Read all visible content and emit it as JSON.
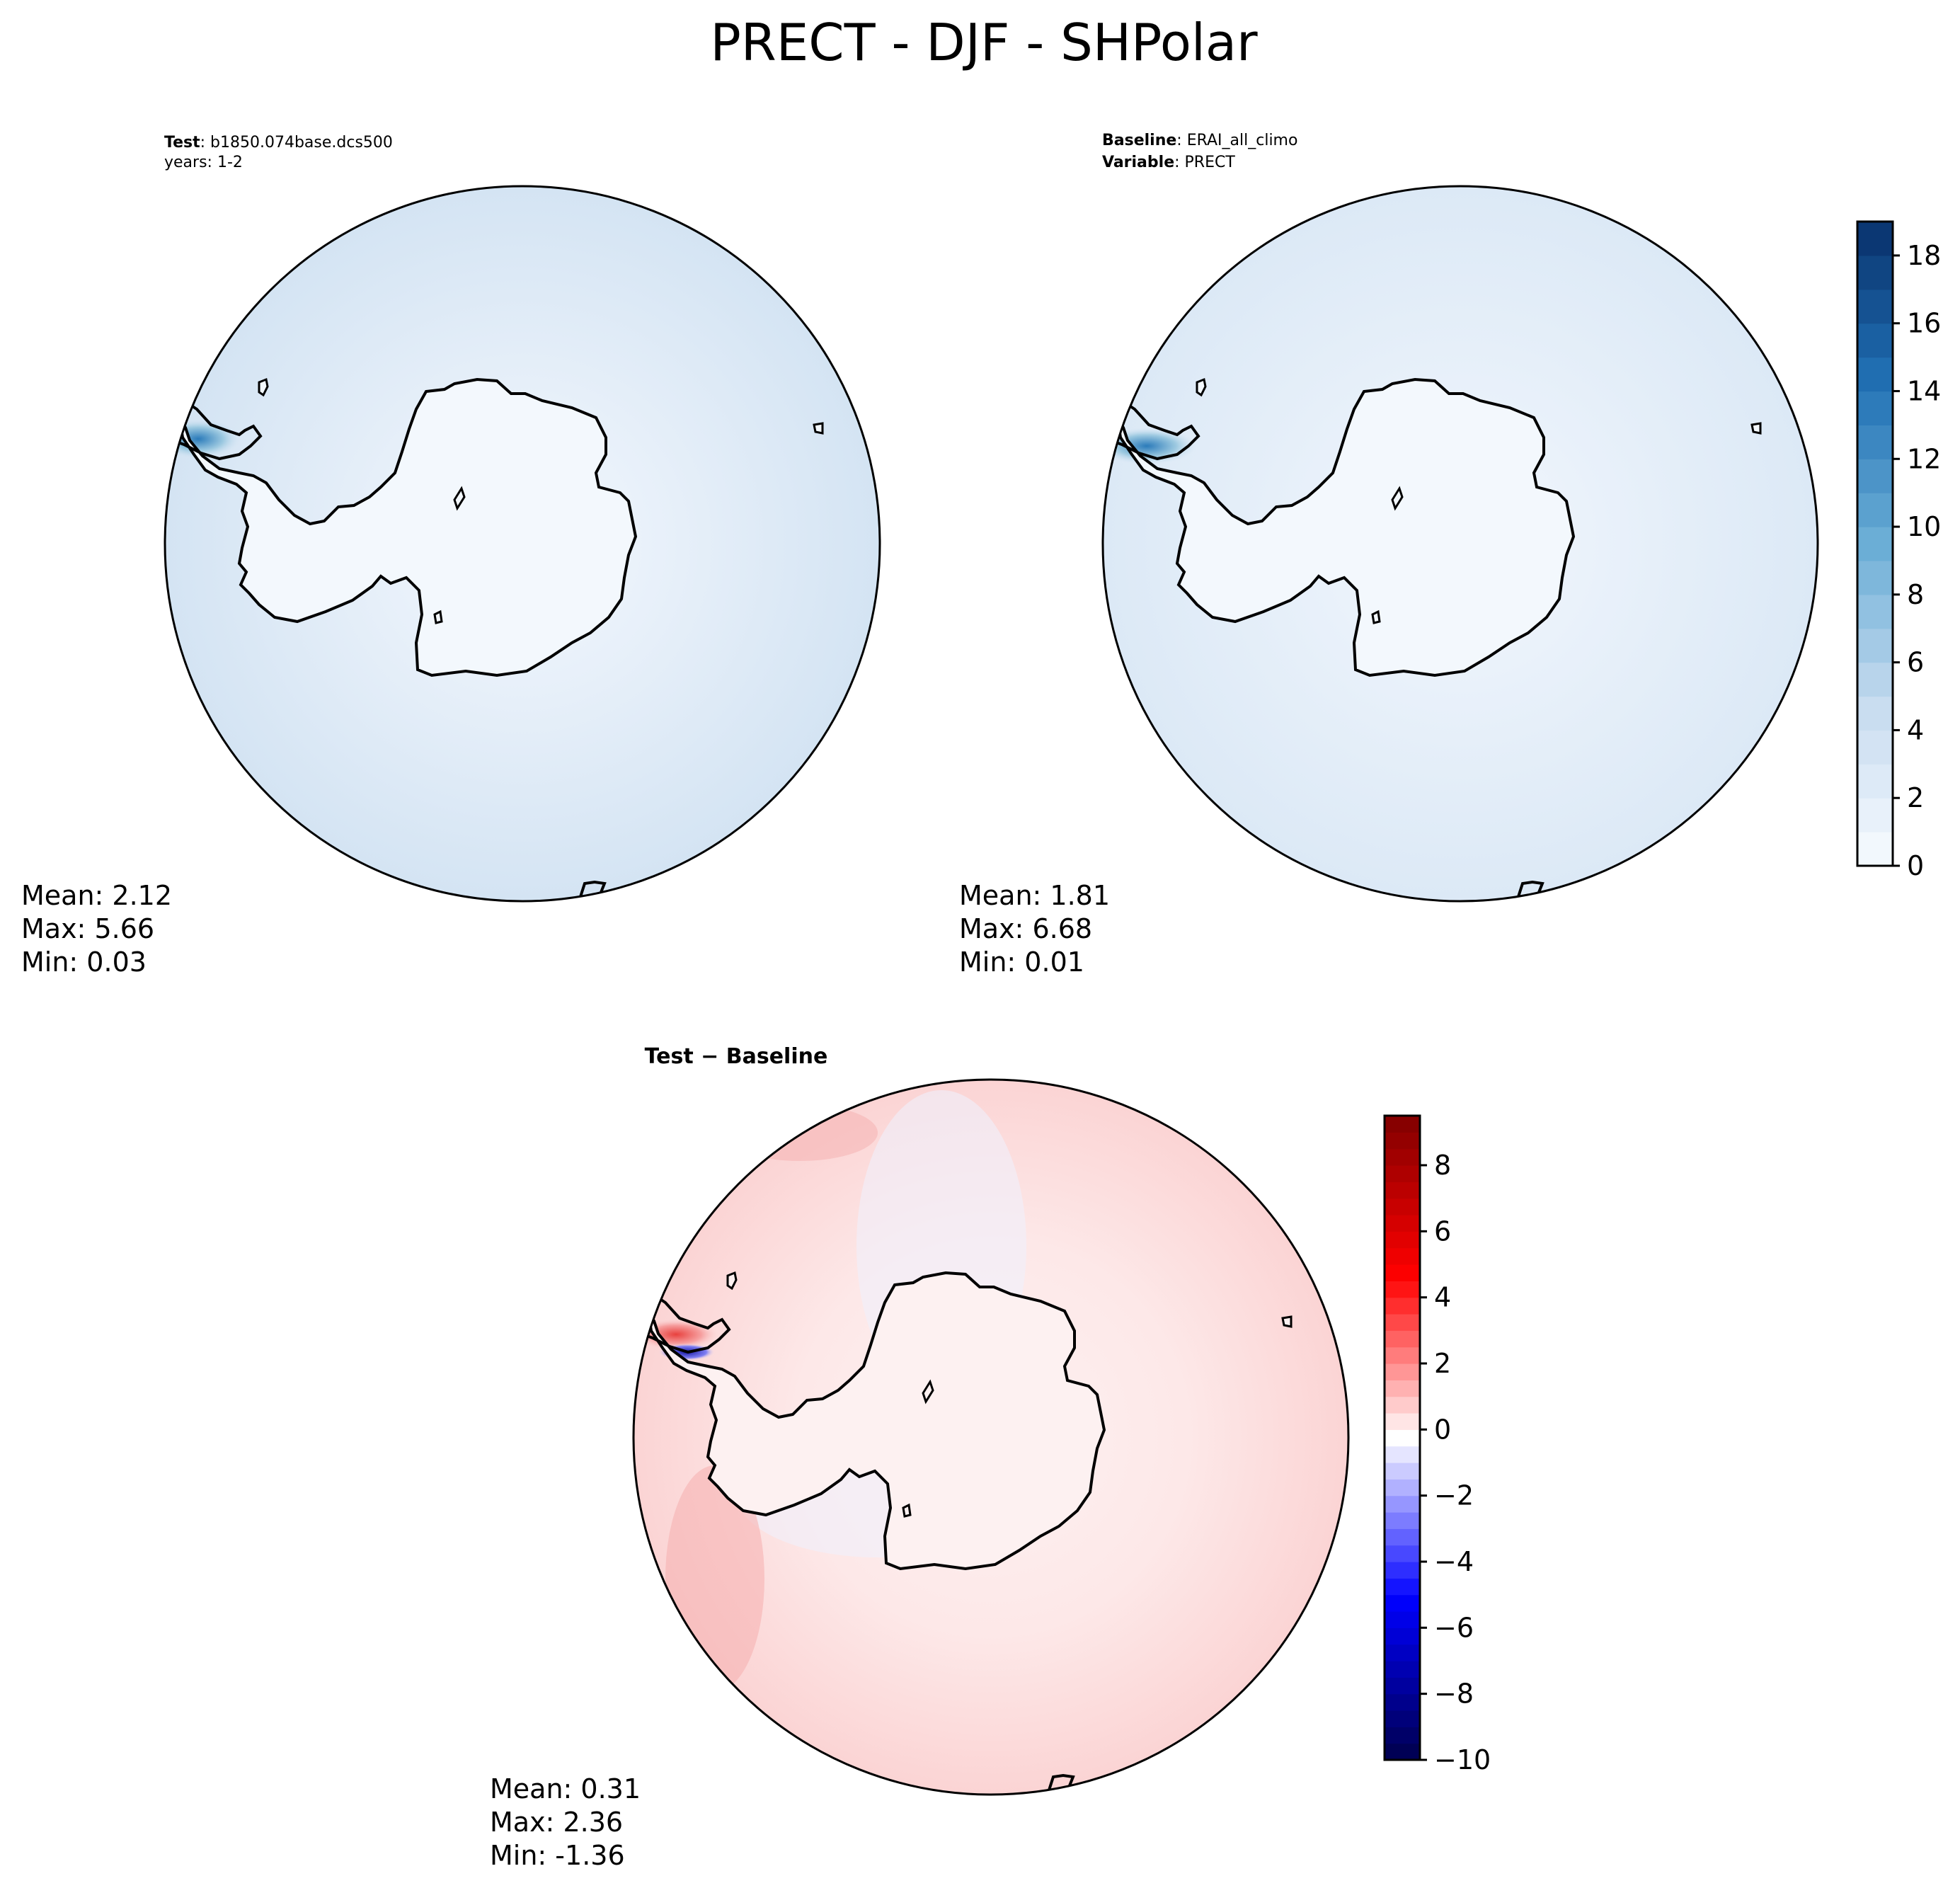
{
  "title": "PRECT - DJF - SHPolar",
  "panels": {
    "test": {
      "label_bold": "Test",
      "label_value": ": b1850.074base.dcs500",
      "line2": "years: 1-2",
      "stats": {
        "mean": "Mean:  2.12",
        "max": "Max:  5.66",
        "min": "Min:  0.03"
      }
    },
    "baseline": {
      "label_bold": "Baseline",
      "label_value": ": ERAI_all_climo",
      "line2_bold": "Variable",
      "line2_value": ": PRECT",
      "stats": {
        "mean": "Mean:  1.81",
        "max": "Max:  6.68",
        "min": "Min:  0.01"
      }
    },
    "diff": {
      "title": "Test − Baseline",
      "stats": {
        "mean": "Mean:  0.31",
        "max": "Max:  2.36",
        "min": "Min: -1.36"
      }
    }
  },
  "chart_data": [
    {
      "type": "heatmap",
      "name": "test",
      "projection": "south polar stereographic",
      "colormap": "Blues",
      "colorbar": {
        "min": 0,
        "max": 19,
        "ticks": [
          0,
          2,
          4,
          6,
          8,
          10,
          12,
          14,
          16,
          18
        ]
      },
      "mean": 2.12,
      "max": 5.66,
      "min": 0.03
    },
    {
      "type": "heatmap",
      "name": "baseline",
      "projection": "south polar stereographic",
      "colormap": "Blues",
      "colorbar": {
        "min": 0,
        "max": 19,
        "ticks": [
          0,
          2,
          4,
          6,
          8,
          10,
          12,
          14,
          16,
          18
        ]
      },
      "mean": 1.81,
      "max": 6.68,
      "min": 0.01
    },
    {
      "type": "heatmap",
      "name": "difference",
      "projection": "south polar stereographic",
      "colormap": "seismic",
      "colorbar": {
        "min": -10,
        "max": 9.5,
        "ticks": [
          -10,
          -8,
          -6,
          -4,
          -2,
          0,
          2,
          4,
          6,
          8
        ]
      },
      "mean": 0.31,
      "max": 2.36,
      "min": -1.36
    }
  ],
  "colorbars": {
    "precip_ticks": [
      "0",
      "2",
      "4",
      "6",
      "8",
      "10",
      "12",
      "14",
      "16",
      "18"
    ],
    "diff_ticks": [
      "−10",
      "−8",
      "−6",
      "−4",
      "−2",
      "0",
      "2",
      "4",
      "6",
      "8"
    ]
  }
}
